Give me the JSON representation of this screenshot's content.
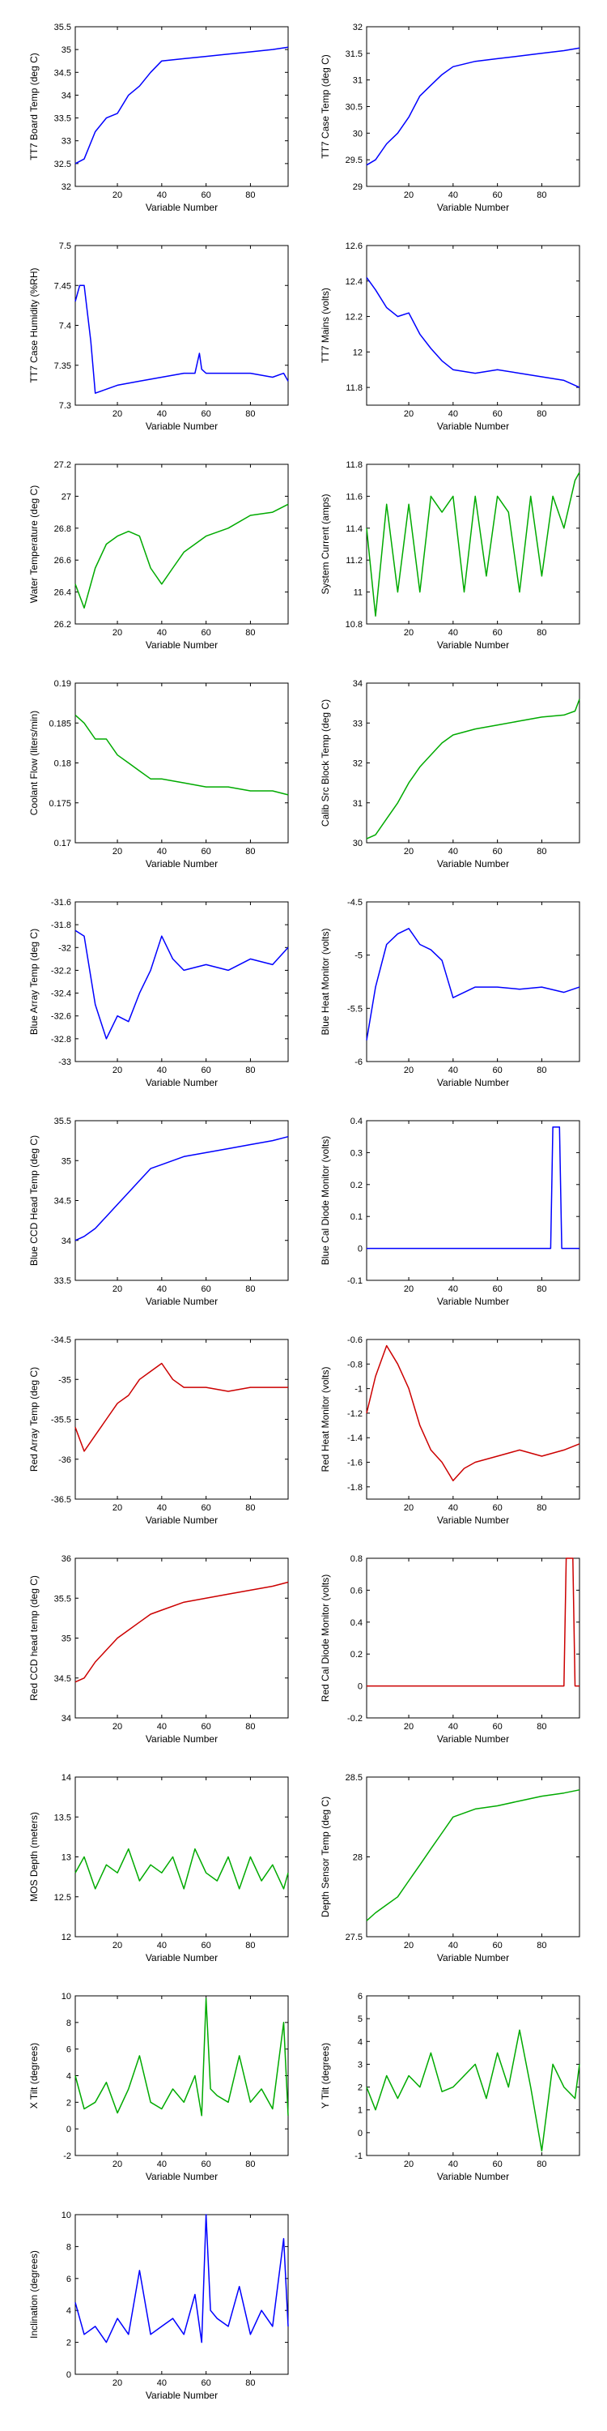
{
  "chart_data": [
    {
      "type": "line",
      "title": "",
      "xlabel": "Variable Number",
      "ylabel": "TT7 Board Temp (deg C)",
      "color": "#0000ff",
      "xlim": [
        1,
        97
      ],
      "ylim": [
        32,
        35.5
      ],
      "xticks": [
        20,
        40,
        60,
        80
      ],
      "yticks": [
        32,
        32.5,
        33,
        33.5,
        34,
        34.5,
        35,
        35.5
      ],
      "x": [
        1,
        5,
        10,
        15,
        20,
        25,
        30,
        35,
        40,
        50,
        60,
        70,
        80,
        90,
        97
      ],
      "y": [
        32.5,
        32.6,
        33.2,
        33.5,
        33.6,
        34.0,
        34.2,
        34.5,
        34.75,
        34.8,
        34.85,
        34.9,
        34.95,
        35.0,
        35.05
      ]
    },
    {
      "type": "line",
      "title": "",
      "xlabel": "Variable Number",
      "ylabel": "TT7 Case Temp (deg C)",
      "color": "#0000ff",
      "xlim": [
        1,
        97
      ],
      "ylim": [
        29,
        32
      ],
      "xticks": [
        20,
        40,
        60,
        80
      ],
      "yticks": [
        29,
        29.5,
        30,
        30.5,
        31,
        31.5,
        32
      ],
      "x": [
        1,
        5,
        10,
        15,
        20,
        25,
        30,
        35,
        40,
        50,
        60,
        70,
        80,
        90,
        97
      ],
      "y": [
        29.4,
        29.5,
        29.8,
        30.0,
        30.3,
        30.7,
        30.9,
        31.1,
        31.25,
        31.35,
        31.4,
        31.45,
        31.5,
        31.55,
        31.6
      ]
    },
    {
      "type": "line",
      "title": "",
      "xlabel": "Variable Number",
      "ylabel": "TT7 Case Humidity (%RH)",
      "color": "#0000ff",
      "xlim": [
        1,
        97
      ],
      "ylim": [
        7.3,
        7.5
      ],
      "xticks": [
        20,
        40,
        60,
        80
      ],
      "yticks": [
        7.3,
        7.35,
        7.4,
        7.45,
        7.5
      ],
      "x": [
        1,
        3,
        5,
        8,
        10,
        15,
        20,
        30,
        40,
        50,
        55,
        57,
        58,
        60,
        70,
        80,
        90,
        95,
        97
      ],
      "y": [
        7.43,
        7.45,
        7.45,
        7.38,
        7.315,
        7.32,
        7.325,
        7.33,
        7.335,
        7.34,
        7.34,
        7.365,
        7.345,
        7.34,
        7.34,
        7.34,
        7.335,
        7.34,
        7.33
      ]
    },
    {
      "type": "line",
      "title": "",
      "xlabel": "Variable Number",
      "ylabel": "TT7 Mains  (volts)",
      "color": "#0000ff",
      "xlim": [
        1,
        97
      ],
      "ylim": [
        11.7,
        12.6
      ],
      "xticks": [
        20,
        40,
        60,
        80
      ],
      "yticks": [
        11.8,
        12,
        12.2,
        12.4,
        12.6
      ],
      "x": [
        1,
        5,
        10,
        15,
        20,
        25,
        30,
        35,
        40,
        50,
        60,
        70,
        80,
        90,
        97
      ],
      "y": [
        12.42,
        12.35,
        12.25,
        12.2,
        12.22,
        12.1,
        12.02,
        11.95,
        11.9,
        11.88,
        11.9,
        11.88,
        11.86,
        11.84,
        11.8
      ]
    },
    {
      "type": "line",
      "title": "",
      "xlabel": "Variable Number",
      "ylabel": "Water Temperature (deg C)",
      "color": "#00aa00",
      "xlim": [
        1,
        97
      ],
      "ylim": [
        26.2,
        27.2
      ],
      "xticks": [
        20,
        40,
        60,
        80
      ],
      "yticks": [
        26.2,
        26.4,
        26.6,
        26.8,
        27,
        27.2
      ],
      "x": [
        1,
        5,
        10,
        15,
        20,
        25,
        30,
        35,
        40,
        45,
        50,
        60,
        70,
        80,
        90,
        97
      ],
      "y": [
        26.45,
        26.3,
        26.55,
        26.7,
        26.75,
        26.78,
        26.75,
        26.55,
        26.45,
        26.55,
        26.65,
        26.75,
        26.8,
        26.88,
        26.9,
        26.95
      ]
    },
    {
      "type": "line",
      "title": "",
      "xlabel": "Variable Number",
      "ylabel": "System Current (amps)",
      "color": "#00aa00",
      "xlim": [
        1,
        97
      ],
      "ylim": [
        10.8,
        11.8
      ],
      "xticks": [
        20,
        40,
        60,
        80
      ],
      "yticks": [
        10.8,
        11,
        11.2,
        11.4,
        11.6,
        11.8
      ],
      "x": [
        1,
        5,
        10,
        15,
        20,
        25,
        30,
        35,
        40,
        45,
        50,
        55,
        60,
        65,
        70,
        75,
        80,
        85,
        90,
        95,
        97
      ],
      "y": [
        11.4,
        10.85,
        11.55,
        11.0,
        11.55,
        11.0,
        11.6,
        11.5,
        11.6,
        11.0,
        11.6,
        11.1,
        11.6,
        11.5,
        11.0,
        11.6,
        11.1,
        11.6,
        11.4,
        11.7,
        11.75
      ]
    },
    {
      "type": "line",
      "title": "",
      "xlabel": "Variable Number",
      "ylabel": "Coolant Flow (liters/min)",
      "color": "#00aa00",
      "xlim": [
        1,
        97
      ],
      "ylim": [
        0.17,
        0.19
      ],
      "xticks": [
        20,
        40,
        60,
        80
      ],
      "yticks": [
        0.17,
        0.175,
        0.18,
        0.185,
        0.19
      ],
      "x": [
        1,
        5,
        10,
        15,
        20,
        25,
        30,
        35,
        40,
        50,
        60,
        70,
        80,
        90,
        97
      ],
      "y": [
        0.186,
        0.185,
        0.183,
        0.183,
        0.181,
        0.18,
        0.179,
        0.178,
        0.178,
        0.1775,
        0.177,
        0.177,
        0.1765,
        0.1765,
        0.176
      ]
    },
    {
      "type": "line",
      "title": "",
      "xlabel": "Variable Number",
      "ylabel": "Calib Src Block Temp (deg C)",
      "color": "#00aa00",
      "xlim": [
        1,
        97
      ],
      "ylim": [
        30,
        34
      ],
      "xticks": [
        20,
        40,
        60,
        80
      ],
      "yticks": [
        30,
        31,
        32,
        33,
        34
      ],
      "x": [
        1,
        5,
        10,
        15,
        20,
        25,
        30,
        35,
        40,
        50,
        60,
        70,
        80,
        90,
        95,
        97
      ],
      "y": [
        30.1,
        30.2,
        30.6,
        31.0,
        31.5,
        31.9,
        32.2,
        32.5,
        32.7,
        32.85,
        32.95,
        33.05,
        33.15,
        33.2,
        33.3,
        33.6
      ]
    },
    {
      "type": "line",
      "title": "",
      "xlabel": "Variable Number",
      "ylabel": "Blue Array Temp (deg C)",
      "color": "#0000ff",
      "xlim": [
        1,
        97
      ],
      "ylim": [
        -33,
        -31.6
      ],
      "xticks": [
        20,
        40,
        60,
        80
      ],
      "yticks": [
        -33,
        -32.8,
        -32.6,
        -32.4,
        -32.2,
        -32,
        -31.8,
        -31.6
      ],
      "x": [
        1,
        5,
        10,
        15,
        20,
        25,
        30,
        35,
        40,
        45,
        50,
        60,
        70,
        80,
        90,
        97
      ],
      "y": [
        -31.85,
        -31.9,
        -32.5,
        -32.8,
        -32.6,
        -32.65,
        -32.4,
        -32.2,
        -31.9,
        -32.1,
        -32.2,
        -32.15,
        -32.2,
        -32.1,
        -32.15,
        -32.0
      ]
    },
    {
      "type": "line",
      "title": "",
      "xlabel": "Variable Number",
      "ylabel": "Blue Heat Monitor (volts)",
      "color": "#0000ff",
      "xlim": [
        1,
        97
      ],
      "ylim": [
        -6,
        -4.5
      ],
      "xticks": [
        20,
        40,
        60,
        80
      ],
      "yticks": [
        -6,
        -5.5,
        -5,
        -4.5
      ],
      "x": [
        1,
        5,
        10,
        15,
        20,
        25,
        30,
        35,
        40,
        50,
        60,
        70,
        80,
        90,
        97
      ],
      "y": [
        -5.8,
        -5.3,
        -4.9,
        -4.8,
        -4.75,
        -4.9,
        -4.95,
        -5.05,
        -5.4,
        -5.3,
        -5.3,
        -5.32,
        -5.3,
        -5.35,
        -5.3
      ]
    },
    {
      "type": "line",
      "title": "",
      "xlabel": "Variable Number",
      "ylabel": "Blue CCD Head Temp (deg C)",
      "color": "#0000ff",
      "xlim": [
        1,
        97
      ],
      "ylim": [
        33.5,
        35.5
      ],
      "xticks": [
        20,
        40,
        60,
        80
      ],
      "yticks": [
        33.5,
        34,
        34.5,
        35,
        35.5
      ],
      "x": [
        1,
        5,
        10,
        15,
        20,
        25,
        30,
        35,
        40,
        50,
        60,
        70,
        80,
        90,
        97
      ],
      "y": [
        34.0,
        34.05,
        34.15,
        34.3,
        34.45,
        34.6,
        34.75,
        34.9,
        34.95,
        35.05,
        35.1,
        35.15,
        35.2,
        35.25,
        35.3
      ]
    },
    {
      "type": "line",
      "title": "",
      "xlabel": "Variable Number",
      "ylabel": "Blue Cal Diode Monitor (volts)",
      "color": "#0000ff",
      "xlim": [
        1,
        97
      ],
      "ylim": [
        -0.1,
        0.4
      ],
      "xticks": [
        20,
        40,
        60,
        80
      ],
      "yticks": [
        -0.1,
        0,
        0.1,
        0.2,
        0.3,
        0.4
      ],
      "x": [
        1,
        10,
        20,
        30,
        40,
        50,
        60,
        70,
        80,
        84,
        85,
        86,
        88,
        89,
        90,
        97
      ],
      "y": [
        0,
        0,
        0,
        0,
        0,
        0,
        0,
        0,
        0,
        0,
        0.38,
        0.38,
        0.38,
        0,
        0,
        0
      ]
    },
    {
      "type": "line",
      "title": "",
      "xlabel": "Variable Number",
      "ylabel": "Red Array Temp (deg C)",
      "color": "#cc0000",
      "xlim": [
        1,
        97
      ],
      "ylim": [
        -36.5,
        -34.5
      ],
      "xticks": [
        20,
        40,
        60,
        80
      ],
      "yticks": [
        -36.5,
        -36,
        -35.5,
        -35,
        -34.5
      ],
      "x": [
        1,
        5,
        10,
        15,
        20,
        25,
        30,
        35,
        40,
        45,
        50,
        60,
        70,
        80,
        90,
        97
      ],
      "y": [
        -35.6,
        -35.9,
        -35.7,
        -35.5,
        -35.3,
        -35.2,
        -35.0,
        -34.9,
        -34.8,
        -35.0,
        -35.1,
        -35.1,
        -35.15,
        -35.1,
        -35.1,
        -35.1
      ]
    },
    {
      "type": "line",
      "title": "",
      "xlabel": "Variable Number",
      "ylabel": "Red Heat Monitor (volts)",
      "color": "#cc0000",
      "xlim": [
        1,
        97
      ],
      "ylim": [
        -1.9,
        -0.6
      ],
      "xticks": [
        20,
        40,
        60,
        80
      ],
      "yticks": [
        -1.8,
        -1.6,
        -1.4,
        -1.2,
        -1,
        -0.8,
        -0.6
      ],
      "x": [
        1,
        5,
        10,
        15,
        20,
        25,
        30,
        35,
        40,
        45,
        50,
        60,
        70,
        80,
        90,
        97
      ],
      "y": [
        -1.2,
        -0.9,
        -0.65,
        -0.8,
        -1.0,
        -1.3,
        -1.5,
        -1.6,
        -1.75,
        -1.65,
        -1.6,
        -1.55,
        -1.5,
        -1.55,
        -1.5,
        -1.45
      ]
    },
    {
      "type": "line",
      "title": "",
      "xlabel": "Variable Number",
      "ylabel": "Red CCD head temp (deg C)",
      "color": "#cc0000",
      "xlim": [
        1,
        97
      ],
      "ylim": [
        34,
        36
      ],
      "xticks": [
        20,
        40,
        60,
        80
      ],
      "yticks": [
        34,
        34.5,
        35,
        35.5,
        36
      ],
      "x": [
        1,
        5,
        10,
        15,
        20,
        25,
        30,
        35,
        40,
        50,
        60,
        70,
        80,
        90,
        97
      ],
      "y": [
        34.45,
        34.5,
        34.7,
        34.85,
        35.0,
        35.1,
        35.2,
        35.3,
        35.35,
        35.45,
        35.5,
        35.55,
        35.6,
        35.65,
        35.7
      ]
    },
    {
      "type": "line",
      "title": "",
      "xlabel": "Variable Number",
      "ylabel": "Red Cal Diode Monitor (volts)",
      "color": "#cc0000",
      "xlim": [
        1,
        97
      ],
      "ylim": [
        -0.2,
        0.8
      ],
      "xticks": [
        20,
        40,
        60,
        80
      ],
      "yticks": [
        -0.2,
        0,
        0.2,
        0.4,
        0.6,
        0.8
      ],
      "x": [
        1,
        10,
        20,
        30,
        40,
        50,
        60,
        70,
        80,
        90,
        91,
        92,
        93,
        94,
        95,
        97
      ],
      "y": [
        0,
        0,
        0,
        0,
        0,
        0,
        0,
        0,
        0,
        0,
        0.8,
        0.8,
        0.8,
        0.8,
        0,
        0
      ]
    },
    {
      "type": "line",
      "title": "",
      "xlabel": "Variable Number",
      "ylabel": "MOS Depth  (meters)",
      "color": "#00aa00",
      "xlim": [
        1,
        97
      ],
      "ylim": [
        12,
        14
      ],
      "xticks": [
        20,
        40,
        60,
        80
      ],
      "yticks": [
        12,
        12.5,
        13,
        13.5,
        14
      ],
      "x": [
        1,
        5,
        10,
        15,
        20,
        25,
        30,
        35,
        40,
        45,
        50,
        55,
        60,
        65,
        70,
        75,
        80,
        85,
        90,
        95,
        97
      ],
      "y": [
        12.8,
        13.0,
        12.6,
        12.9,
        12.8,
        13.1,
        12.7,
        12.9,
        12.8,
        13.0,
        12.6,
        13.1,
        12.8,
        12.7,
        13.0,
        12.6,
        13.0,
        12.7,
        12.9,
        12.6,
        12.8
      ]
    },
    {
      "type": "line",
      "title": "",
      "xlabel": "Variable Number",
      "ylabel": "Depth Sensor Temp (deg C)",
      "color": "#00aa00",
      "xlim": [
        1,
        97
      ],
      "ylim": [
        27.5,
        28.5
      ],
      "xticks": [
        20,
        40,
        60,
        80
      ],
      "yticks": [
        27.5,
        28,
        28.5
      ],
      "x": [
        1,
        5,
        10,
        15,
        20,
        25,
        30,
        35,
        40,
        50,
        60,
        70,
        80,
        90,
        97
      ],
      "y": [
        27.6,
        27.65,
        27.7,
        27.75,
        27.85,
        27.95,
        28.05,
        28.15,
        28.25,
        28.3,
        28.32,
        28.35,
        28.38,
        28.4,
        28.42
      ]
    },
    {
      "type": "line",
      "title": "",
      "xlabel": "Variable Number",
      "ylabel": "X Tilt  (degrees)",
      "color": "#00aa00",
      "xlim": [
        1,
        97
      ],
      "ylim": [
        -2,
        10
      ],
      "xticks": [
        20,
        40,
        60,
        80
      ],
      "yticks": [
        -2,
        0,
        2,
        4,
        6,
        8,
        10
      ],
      "x": [
        1,
        5,
        10,
        15,
        20,
        25,
        30,
        35,
        40,
        45,
        50,
        55,
        58,
        60,
        62,
        65,
        70,
        75,
        80,
        85,
        90,
        95,
        97
      ],
      "y": [
        4.0,
        1.5,
        2.0,
        3.5,
        1.2,
        3.0,
        5.5,
        2.0,
        1.5,
        3.0,
        2.0,
        4.0,
        1.0,
        9.8,
        3.0,
        2.5,
        2.0,
        5.5,
        2.0,
        3.0,
        1.5,
        8.0,
        1.0
      ]
    },
    {
      "type": "line",
      "title": "",
      "xlabel": "Variable Number",
      "ylabel": "Y Tilt  (degrees)",
      "color": "#00aa00",
      "xlim": [
        1,
        97
      ],
      "ylim": [
        -1,
        6
      ],
      "xticks": [
        20,
        40,
        60,
        80
      ],
      "yticks": [
        -1,
        0,
        1,
        2,
        3,
        4,
        5,
        6
      ],
      "x": [
        1,
        5,
        10,
        15,
        20,
        25,
        30,
        35,
        40,
        45,
        50,
        55,
        60,
        65,
        70,
        75,
        80,
        85,
        90,
        95,
        97
      ],
      "y": [
        2.0,
        1.0,
        2.5,
        1.5,
        2.5,
        2.0,
        3.5,
        1.8,
        2.0,
        2.5,
        3.0,
        1.5,
        3.5,
        2.0,
        4.5,
        2.0,
        -0.8,
        3.0,
        2.0,
        1.5,
        3.0
      ]
    },
    {
      "type": "line",
      "title": "",
      "xlabel": "Variable Number",
      "ylabel": "Inclination  (degrees)",
      "color": "#0000ff",
      "xlim": [
        1,
        97
      ],
      "ylim": [
        0,
        10
      ],
      "xticks": [
        20,
        40,
        60,
        80
      ],
      "yticks": [
        0,
        2,
        4,
        6,
        8,
        10
      ],
      "x": [
        1,
        5,
        10,
        15,
        20,
        25,
        30,
        35,
        40,
        45,
        50,
        55,
        58,
        60,
        62,
        65,
        70,
        75,
        80,
        85,
        90,
        95,
        97
      ],
      "y": [
        4.5,
        2.5,
        3.0,
        2.0,
        3.5,
        2.5,
        6.5,
        2.5,
        3.0,
        3.5,
        2.5,
        5.0,
        2.0,
        10.0,
        4.0,
        3.5,
        3.0,
        5.5,
        2.5,
        4.0,
        3.0,
        8.5,
        3.0
      ]
    }
  ]
}
